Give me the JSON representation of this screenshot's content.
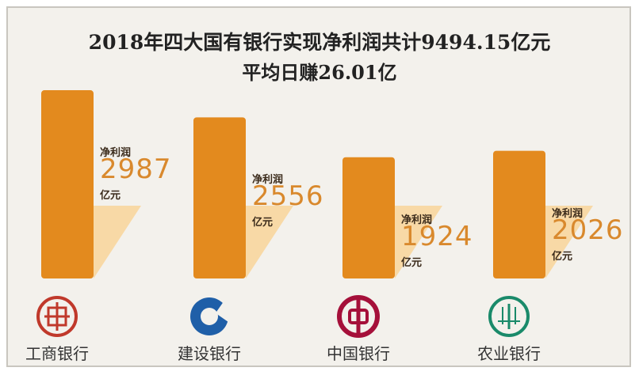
{
  "chart_data": {
    "type": "bar",
    "title": "2018年四大国有银行实现净利润共计9494.15亿元",
    "subtitle": "平均日赚26.01亿",
    "categories": [
      "工商银行",
      "建设银行",
      "中国银行",
      "农业银行"
    ],
    "series": [
      {
        "values": [
          2987,
          2556,
          1924,
          2026
        ]
      }
    ],
    "value_label": "净利润",
    "unit": "亿元",
    "bar_color": "#e38a1e",
    "shadow_color": "#f8d9a6",
    "ylim": [
      0,
      3000
    ],
    "legend": "none",
    "grid": false
  },
  "banks": [
    {
      "name": "工商银行",
      "logo": "icbc-logo-icon",
      "logo_color": "#c0392b"
    },
    {
      "name": "建设银行",
      "logo": "ccb-logo-icon",
      "logo_color": "#1f5fa8"
    },
    {
      "name": "中国银行",
      "logo": "boc-logo-icon",
      "logo_color": "#a5103a"
    },
    {
      "name": "农业银行",
      "logo": "abc-logo-icon",
      "logo_color": "#1a8a6a"
    }
  ]
}
